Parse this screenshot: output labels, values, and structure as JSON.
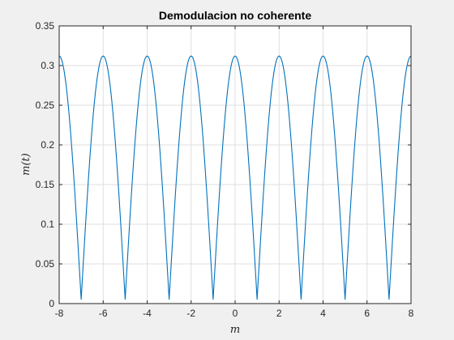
{
  "chart_data": {
    "type": "line",
    "title": "Demodulacion no coherente",
    "xlabel": "m",
    "ylabel": "m(t)",
    "xlim": [
      -8,
      8
    ],
    "ylim": [
      0,
      0.35
    ],
    "grid": true,
    "x_ticks": [
      "-8",
      "-6",
      "-4",
      "-2",
      "0",
      "2",
      "4",
      "6",
      "8"
    ],
    "y_ticks": [
      "0",
      "0.05",
      "0.1",
      "0.15",
      "0.2",
      "0.25",
      "0.3",
      "0.35"
    ],
    "series": [
      {
        "color": "#0072bd",
        "x": [
          -8,
          -7,
          -6,
          -5,
          -4,
          -3,
          -2,
          -1,
          0,
          1,
          2,
          3,
          4,
          5,
          6,
          7,
          8
        ],
        "y": [
          0.312,
          0.005,
          0.312,
          0.005,
          0.312,
          0.005,
          0.312,
          0.005,
          0.312,
          0.005,
          0.312,
          0.005,
          0.312,
          0.005,
          0.312,
          0.005,
          0.312
        ]
      }
    ]
  }
}
